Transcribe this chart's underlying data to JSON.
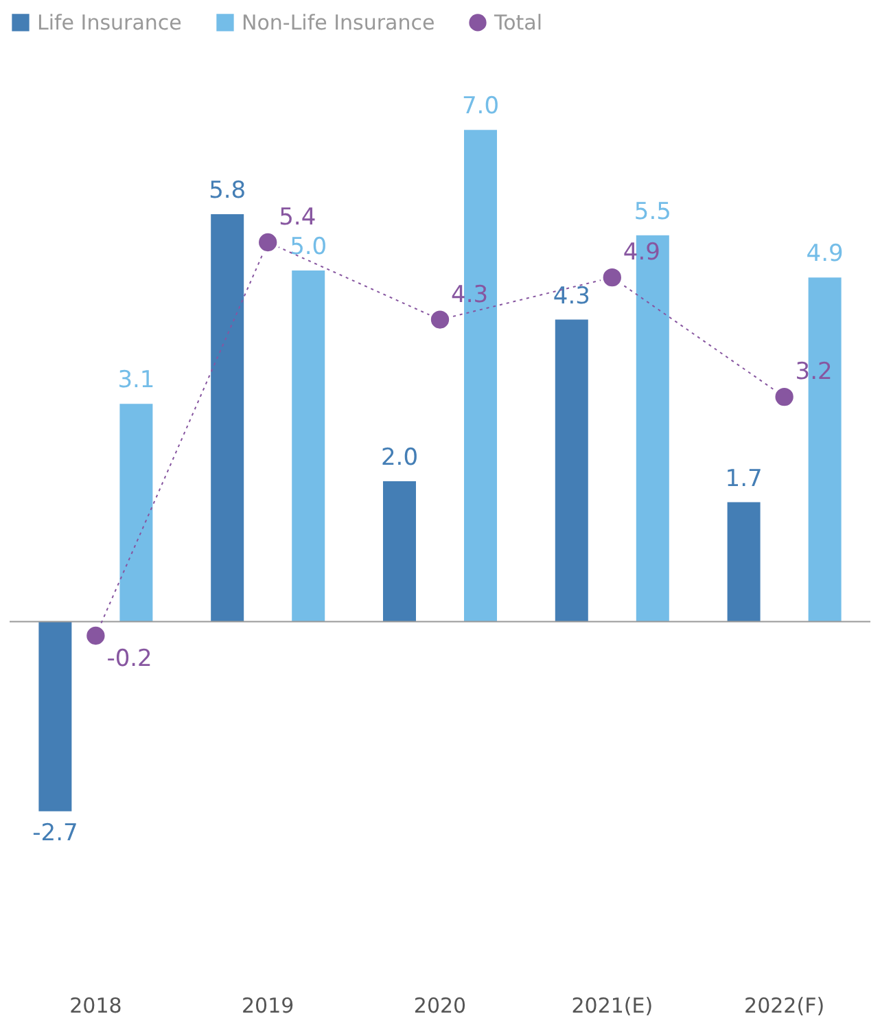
{
  "chart_data": {
    "type": "bar",
    "categories": [
      "2018",
      "2019",
      "2020",
      "2021(E)",
      "2022(F)"
    ],
    "series": [
      {
        "name": "Life Insurance",
        "color": "#447eb5",
        "values": [
          -2.7,
          5.8,
          2.0,
          4.3,
          1.7
        ],
        "value_labels": [
          "-2.7",
          "5.8",
          "2.0",
          "4.3",
          "1.7"
        ]
      },
      {
        "name": "Non-Life Insurance",
        "color": "#74bde8",
        "values": [
          3.1,
          5.0,
          7.0,
          5.5,
          4.9
        ],
        "value_labels": [
          "3.1",
          "5.0",
          "7.0",
          "5.5",
          "4.9"
        ]
      },
      {
        "name": "Total",
        "type": "line",
        "color": "#8756a0",
        "values": [
          -0.2,
          5.4,
          4.3,
          4.9,
          3.2
        ],
        "value_labels": [
          "-0.2",
          "5.4",
          "4.3",
          "4.9",
          "3.2"
        ],
        "marker": "circle",
        "line_style": "dotted"
      }
    ],
    "legend": "top left",
    "grid": false,
    "tick_labels": "x"
  }
}
